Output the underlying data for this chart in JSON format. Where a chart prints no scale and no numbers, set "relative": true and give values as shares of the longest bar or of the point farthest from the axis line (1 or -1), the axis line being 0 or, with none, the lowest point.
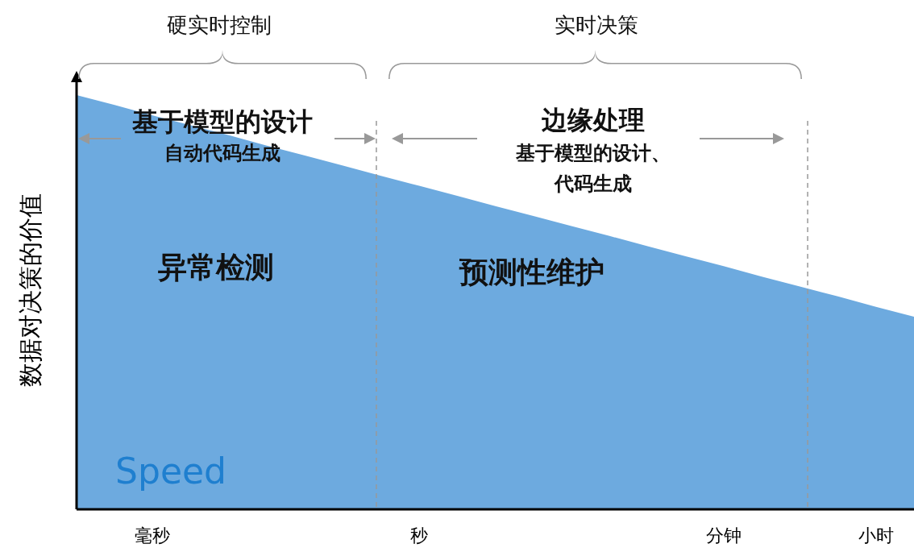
{
  "chart_data": {
    "type": "area",
    "relative": true,
    "ylabel": "数据对决策的价值",
    "categories": [
      null,
      null,
      "毫秒",
      null,
      null,
      null,
      null,
      null,
      null,
      "秒",
      null,
      null,
      null,
      null,
      null,
      null,
      null,
      "分钟",
      null,
      null,
      null,
      "小时",
      null
    ],
    "series": [
      {
        "color": "#6daadf",
        "values": [
          1,
          0.976,
          0.951,
          0.927,
          0.903,
          0.878,
          0.854,
          0.83,
          0.805,
          0.781,
          0.757,
          0.732,
          0.708,
          0.684,
          0.66,
          0.635,
          0.611,
          0.587,
          0.562,
          0.538,
          0.514,
          0.489,
          0.465
        ]
      }
    ],
    "annotations": [
      "硬实时控制",
      "实时决策",
      "基于模型的设计",
      "自动代码生成",
      "边缘处理",
      "基于模型的设计、",
      "代码生成",
      "异常检测",
      "预测性维护",
      "Speed"
    ]
  }
}
